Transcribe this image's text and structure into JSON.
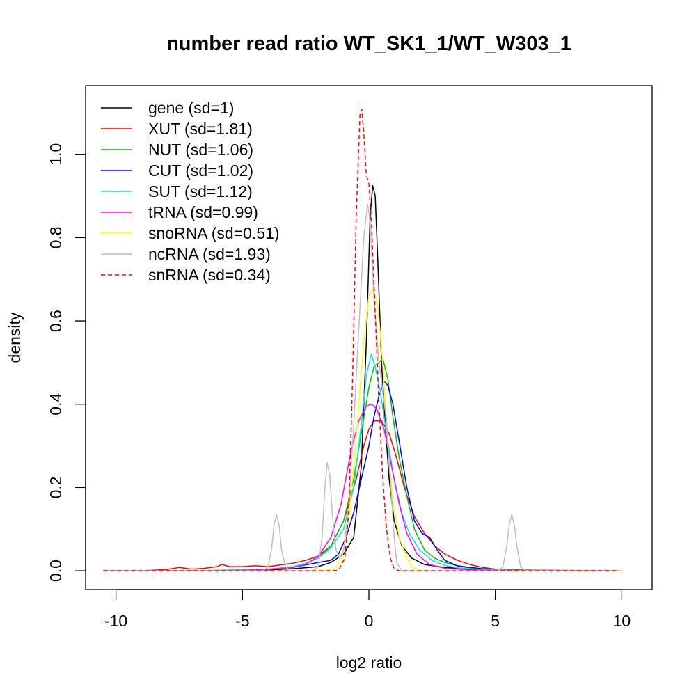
{
  "chart_data": {
    "type": "line",
    "title": "number read ratio WT_SK1_1/WT_W303_1",
    "xlabel": "log2 ratio",
    "ylabel": "density",
    "xlim": [
      -11.2,
      11.2
    ],
    "ylim": [
      -0.045,
      1.165
    ],
    "x_ticks": [
      -10,
      -5,
      0,
      5,
      10
    ],
    "x_tick_labels": [
      "-10",
      "-5",
      "0",
      "5",
      "10"
    ],
    "y_ticks": [
      0.0,
      0.2,
      0.4,
      0.6,
      0.8,
      1.0
    ],
    "y_tick_labels": [
      "0.0",
      "0.2",
      "0.4",
      "0.6",
      "0.8",
      "1.0"
    ],
    "grid": false,
    "legend_position": "top-left",
    "series": [
      {
        "name": "gene (sd=1)",
        "color": "#000000",
        "dash": "solid",
        "points": [
          [
            -10.5,
            0
          ],
          [
            -6,
            0
          ],
          [
            -4,
            0.002
          ],
          [
            -3,
            0.005
          ],
          [
            -2,
            0.01
          ],
          [
            -1.5,
            0.02
          ],
          [
            -1,
            0.04
          ],
          [
            -0.6,
            0.08
          ],
          [
            -0.3,
            0.25
          ],
          [
            -0.1,
            0.55
          ],
          [
            0.05,
            0.85
          ],
          [
            0.15,
            0.925
          ],
          [
            0.25,
            0.9
          ],
          [
            0.35,
            0.75
          ],
          [
            0.5,
            0.5
          ],
          [
            0.65,
            0.35
          ],
          [
            0.8,
            0.22
          ],
          [
            1.0,
            0.12
          ],
          [
            1.3,
            0.06
          ],
          [
            1.7,
            0.03
          ],
          [
            2.2,
            0.015
          ],
          [
            3,
            0.008
          ],
          [
            4,
            0.004
          ],
          [
            5,
            0.002
          ],
          [
            7,
            0.001
          ],
          [
            10,
            0
          ]
        ]
      },
      {
        "name": "XUT (sd=1.81)",
        "color": "#ff0000",
        "dash": "solid",
        "points": [
          [
            -10.5,
            0
          ],
          [
            -9,
            0
          ],
          [
            -8,
            0.003
          ],
          [
            -7.5,
            0.008
          ],
          [
            -7,
            0.004
          ],
          [
            -6.5,
            0.006
          ],
          [
            -6,
            0.01
          ],
          [
            -5.8,
            0.015
          ],
          [
            -5.5,
            0.01
          ],
          [
            -5,
            0.01
          ],
          [
            -4.5,
            0.012
          ],
          [
            -4,
            0.01
          ],
          [
            -3.5,
            0.014
          ],
          [
            -3,
            0.018
          ],
          [
            -2.5,
            0.025
          ],
          [
            -2,
            0.035
          ],
          [
            -1.5,
            0.06
          ],
          [
            -1,
            0.12
          ],
          [
            -0.5,
            0.22
          ],
          [
            -0.2,
            0.3
          ],
          [
            0,
            0.34
          ],
          [
            0.2,
            0.36
          ],
          [
            0.5,
            0.36
          ],
          [
            0.8,
            0.33
          ],
          [
            1.1,
            0.27
          ],
          [
            1.4,
            0.2
          ],
          [
            1.8,
            0.13
          ],
          [
            2.2,
            0.09
          ],
          [
            2.6,
            0.06
          ],
          [
            3,
            0.04
          ],
          [
            3.5,
            0.025
          ],
          [
            4,
            0.015
          ],
          [
            4.5,
            0.008
          ],
          [
            5,
            0.004
          ],
          [
            6,
            0.002
          ],
          [
            7,
            0.001
          ],
          [
            9.9,
            0
          ]
        ]
      },
      {
        "name": "NUT (sd=1.06)",
        "color": "#00c000",
        "dash": "solid",
        "points": [
          [
            -10.5,
            0
          ],
          [
            -7,
            0
          ],
          [
            -5,
            0.001
          ],
          [
            -4,
            0.003
          ],
          [
            -3,
            0.01
          ],
          [
            -2.5,
            0.018
          ],
          [
            -2,
            0.03
          ],
          [
            -1.5,
            0.06
          ],
          [
            -1,
            0.12
          ],
          [
            -0.6,
            0.22
          ],
          [
            -0.3,
            0.33
          ],
          [
            0,
            0.44
          ],
          [
            0.2,
            0.49
          ],
          [
            0.4,
            0.5
          ],
          [
            0.55,
            0.51
          ],
          [
            0.75,
            0.46
          ],
          [
            0.95,
            0.37
          ],
          [
            1.2,
            0.27
          ],
          [
            1.5,
            0.18
          ],
          [
            1.8,
            0.1
          ],
          [
            2.2,
            0.05
          ],
          [
            2.6,
            0.03
          ],
          [
            3,
            0.02
          ],
          [
            3.5,
            0.012
          ],
          [
            4,
            0.006
          ],
          [
            5,
            0.002
          ],
          [
            6.5,
            0.001
          ],
          [
            8,
            0
          ]
        ]
      },
      {
        "name": "CUT (sd=1.02)",
        "color": "#0000ff",
        "dash": "solid",
        "points": [
          [
            -10.5,
            0
          ],
          [
            -6,
            0
          ],
          [
            -5,
            0.002
          ],
          [
            -4,
            0.004
          ],
          [
            -3,
            0.008
          ],
          [
            -2.5,
            0.014
          ],
          [
            -2,
            0.02
          ],
          [
            -1.5,
            0.025
          ],
          [
            -1.2,
            0.04
          ],
          [
            -0.9,
            0.08
          ],
          [
            -0.6,
            0.14
          ],
          [
            -0.3,
            0.22
          ],
          [
            0,
            0.3
          ],
          [
            0.2,
            0.37
          ],
          [
            0.4,
            0.42
          ],
          [
            0.6,
            0.455
          ],
          [
            0.75,
            0.445
          ],
          [
            0.95,
            0.4
          ],
          [
            1.2,
            0.31
          ],
          [
            1.5,
            0.2
          ],
          [
            1.8,
            0.12
          ],
          [
            2.1,
            0.09
          ],
          [
            2.4,
            0.08
          ],
          [
            2.7,
            0.05
          ],
          [
            3,
            0.025
          ],
          [
            3.5,
            0.012
          ],
          [
            4,
            0.008
          ],
          [
            4.5,
            0.005
          ],
          [
            5,
            0.003
          ],
          [
            6,
            0.001
          ],
          [
            7,
            0
          ]
        ]
      },
      {
        "name": "SUT (sd=1.12)",
        "color": "#00e5ee",
        "dash": "solid",
        "points": [
          [
            -10.5,
            0
          ],
          [
            -7,
            0
          ],
          [
            -5.5,
            0.002
          ],
          [
            -4,
            0.004
          ],
          [
            -3,
            0.01
          ],
          [
            -2.5,
            0.018
          ],
          [
            -2,
            0.03
          ],
          [
            -1.5,
            0.055
          ],
          [
            -1,
            0.1
          ],
          [
            -0.6,
            0.2
          ],
          [
            -0.3,
            0.35
          ],
          [
            -0.1,
            0.47
          ],
          [
            0.1,
            0.52
          ],
          [
            0.25,
            0.49
          ],
          [
            0.45,
            0.43
          ],
          [
            0.7,
            0.33
          ],
          [
            1,
            0.22
          ],
          [
            1.3,
            0.14
          ],
          [
            1.6,
            0.09
          ],
          [
            2,
            0.05
          ],
          [
            2.5,
            0.025
          ],
          [
            3,
            0.013
          ],
          [
            3.5,
            0.007
          ],
          [
            4.5,
            0.003
          ],
          [
            6,
            0.001
          ],
          [
            8,
            0
          ]
        ]
      },
      {
        "name": "tRNA (sd=0.99)",
        "color": "#ff00ff",
        "dash": "solid",
        "points": [
          [
            -10.5,
            0
          ],
          [
            -6,
            0
          ],
          [
            -5,
            0.001
          ],
          [
            -4,
            0.003
          ],
          [
            -3,
            0.008
          ],
          [
            -2.5,
            0.015
          ],
          [
            -2,
            0.035
          ],
          [
            -1.5,
            0.08
          ],
          [
            -1.1,
            0.16
          ],
          [
            -0.7,
            0.29
          ],
          [
            -0.4,
            0.36
          ],
          [
            -0.1,
            0.395
          ],
          [
            0.1,
            0.4
          ],
          [
            0.3,
            0.39
          ],
          [
            0.6,
            0.34
          ],
          [
            0.9,
            0.25
          ],
          [
            1.2,
            0.16
          ],
          [
            1.5,
            0.09
          ],
          [
            1.9,
            0.04
          ],
          [
            2.4,
            0.015
          ],
          [
            3,
            0.006
          ],
          [
            4,
            0.002
          ],
          [
            6,
            0
          ],
          [
            10,
            0
          ]
        ]
      },
      {
        "name": "snoRNA (sd=0.51)",
        "color": "#ffff00",
        "dash": "solid",
        "points": [
          [
            -10.5,
            0
          ],
          [
            -2,
            0
          ],
          [
            -1.4,
            0.002
          ],
          [
            -1.1,
            0.02
          ],
          [
            -0.8,
            0.12
          ],
          [
            -0.5,
            0.32
          ],
          [
            -0.2,
            0.55
          ],
          [
            0,
            0.66
          ],
          [
            0.15,
            0.675
          ],
          [
            0.35,
            0.64
          ],
          [
            0.55,
            0.5
          ],
          [
            0.75,
            0.3
          ],
          [
            0.95,
            0.17
          ],
          [
            1.2,
            0.08
          ],
          [
            1.5,
            0.03
          ],
          [
            1.7,
            0.01
          ],
          [
            2,
            0
          ],
          [
            10,
            0
          ]
        ]
      },
      {
        "name": "ncRNA (sd=1.93)",
        "color": "#bebebe",
        "dash": "solid",
        "points": [
          [
            -10.5,
            0
          ],
          [
            -4.2,
            0
          ],
          [
            -4.0,
            0.008
          ],
          [
            -3.85,
            0.05
          ],
          [
            -3.75,
            0.11
          ],
          [
            -3.65,
            0.135
          ],
          [
            -3.55,
            0.11
          ],
          [
            -3.45,
            0.05
          ],
          [
            -3.3,
            0.01
          ],
          [
            -3.1,
            0
          ],
          [
            -2.2,
            0
          ],
          [
            -2.0,
            0.01
          ],
          [
            -1.85,
            0.08
          ],
          [
            -1.75,
            0.19
          ],
          [
            -1.65,
            0.26
          ],
          [
            -1.55,
            0.23
          ],
          [
            -1.45,
            0.14
          ],
          [
            -1.3,
            0.05
          ],
          [
            -1.15,
            0.03
          ],
          [
            -1.0,
            0.05
          ],
          [
            -0.8,
            0.15
          ],
          [
            -0.6,
            0.35
          ],
          [
            -0.4,
            0.58
          ],
          [
            -0.2,
            0.8
          ],
          [
            -0.05,
            0.88
          ],
          [
            0.05,
            0.84
          ],
          [
            0.2,
            0.65
          ],
          [
            0.4,
            0.5
          ],
          [
            0.55,
            0.43
          ],
          [
            0.7,
            0.36
          ],
          [
            0.85,
            0.22
          ],
          [
            1.0,
            0.08
          ],
          [
            1.1,
            0.02
          ],
          [
            1.3,
            0
          ],
          [
            5.1,
            0
          ],
          [
            5.3,
            0.01
          ],
          [
            5.45,
            0.06
          ],
          [
            5.55,
            0.11
          ],
          [
            5.65,
            0.135
          ],
          [
            5.75,
            0.11
          ],
          [
            5.85,
            0.06
          ],
          [
            6.0,
            0.01
          ],
          [
            6.2,
            0
          ],
          [
            9.9,
            0
          ]
        ]
      },
      {
        "name": "snRNA (sd=0.34)",
        "color": "#ff0000",
        "dash": "dashed",
        "points": [
          [
            -10.5,
            0
          ],
          [
            -1.6,
            0
          ],
          [
            -1.2,
            0.001
          ],
          [
            -0.95,
            0.03
          ],
          [
            -0.8,
            0.14
          ],
          [
            -0.65,
            0.45
          ],
          [
            -0.5,
            0.85
          ],
          [
            -0.35,
            1.1
          ],
          [
            -0.28,
            1.108
          ],
          [
            -0.2,
            1.05
          ],
          [
            -0.1,
            0.95
          ],
          [
            0,
            0.93
          ],
          [
            0.1,
            0.84
          ],
          [
            0.25,
            0.62
          ],
          [
            0.4,
            0.4
          ],
          [
            0.55,
            0.22
          ],
          [
            0.7,
            0.1
          ],
          [
            0.85,
            0.03
          ],
          [
            1.0,
            0.005
          ],
          [
            1.2,
            0
          ],
          [
            9.9,
            0
          ]
        ]
      }
    ]
  }
}
